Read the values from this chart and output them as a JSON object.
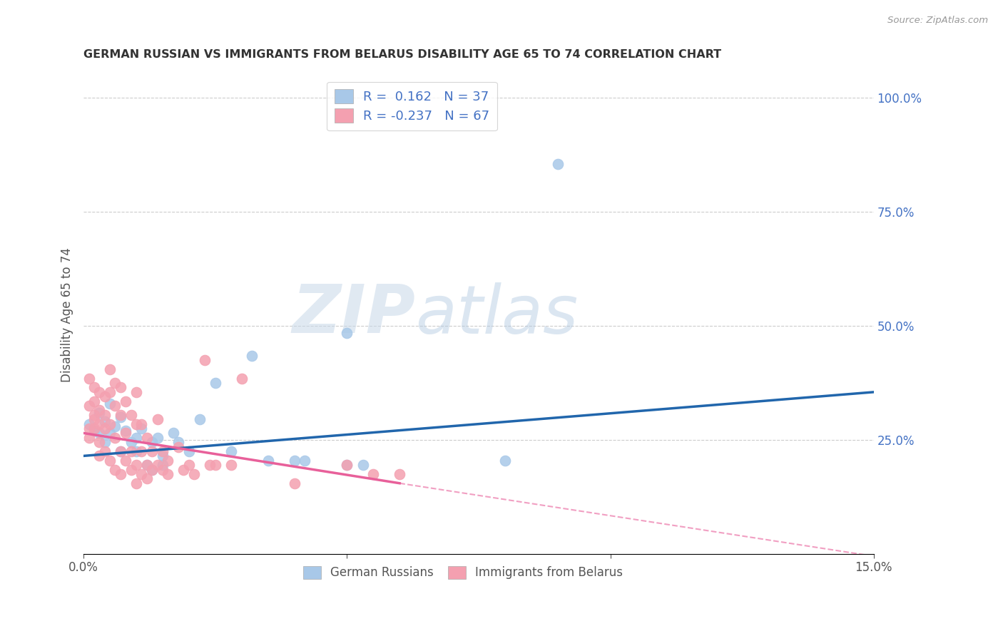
{
  "title": "GERMAN RUSSIAN VS IMMIGRANTS FROM BELARUS DISABILITY AGE 65 TO 74 CORRELATION CHART",
  "source": "Source: ZipAtlas.com",
  "ylabel": "Disability Age 65 to 74",
  "xlim": [
    0.0,
    0.15
  ],
  "ylim": [
    0.0,
    1.05
  ],
  "r_blue": 0.162,
  "n_blue": 37,
  "r_pink": -0.237,
  "n_pink": 67,
  "legend_label_blue": "German Russians",
  "legend_label_pink": "Immigrants from Belarus",
  "blue_color": "#a8c8e8",
  "pink_color": "#f4a0b0",
  "blue_line_color": "#2166ac",
  "pink_line_color": "#e8609a",
  "blue_scatter": [
    [
      0.001,
      0.285
    ],
    [
      0.002,
      0.27
    ],
    [
      0.003,
      0.31
    ],
    [
      0.003,
      0.265
    ],
    [
      0.004,
      0.29
    ],
    [
      0.004,
      0.245
    ],
    [
      0.005,
      0.33
    ],
    [
      0.005,
      0.265
    ],
    [
      0.006,
      0.28
    ],
    [
      0.007,
      0.3
    ],
    [
      0.007,
      0.225
    ],
    [
      0.008,
      0.27
    ],
    [
      0.009,
      0.245
    ],
    [
      0.01,
      0.255
    ],
    [
      0.01,
      0.225
    ],
    [
      0.011,
      0.275
    ],
    [
      0.012,
      0.195
    ],
    [
      0.013,
      0.185
    ],
    [
      0.013,
      0.245
    ],
    [
      0.014,
      0.255
    ],
    [
      0.015,
      0.215
    ],
    [
      0.015,
      0.195
    ],
    [
      0.017,
      0.265
    ],
    [
      0.018,
      0.245
    ],
    [
      0.02,
      0.225
    ],
    [
      0.022,
      0.295
    ],
    [
      0.025,
      0.375
    ],
    [
      0.028,
      0.225
    ],
    [
      0.032,
      0.435
    ],
    [
      0.035,
      0.205
    ],
    [
      0.04,
      0.205
    ],
    [
      0.042,
      0.205
    ],
    [
      0.05,
      0.195
    ],
    [
      0.05,
      0.485
    ],
    [
      0.053,
      0.195
    ],
    [
      0.08,
      0.205
    ],
    [
      0.09,
      0.855
    ]
  ],
  "pink_scatter": [
    [
      0.001,
      0.275
    ],
    [
      0.001,
      0.255
    ],
    [
      0.001,
      0.325
    ],
    [
      0.001,
      0.385
    ],
    [
      0.002,
      0.295
    ],
    [
      0.002,
      0.335
    ],
    [
      0.002,
      0.365
    ],
    [
      0.002,
      0.275
    ],
    [
      0.002,
      0.305
    ],
    [
      0.003,
      0.315
    ],
    [
      0.003,
      0.355
    ],
    [
      0.003,
      0.285
    ],
    [
      0.003,
      0.245
    ],
    [
      0.003,
      0.215
    ],
    [
      0.004,
      0.345
    ],
    [
      0.004,
      0.305
    ],
    [
      0.004,
      0.275
    ],
    [
      0.004,
      0.225
    ],
    [
      0.005,
      0.405
    ],
    [
      0.005,
      0.355
    ],
    [
      0.005,
      0.285
    ],
    [
      0.005,
      0.205
    ],
    [
      0.006,
      0.375
    ],
    [
      0.006,
      0.325
    ],
    [
      0.006,
      0.255
    ],
    [
      0.006,
      0.185
    ],
    [
      0.007,
      0.365
    ],
    [
      0.007,
      0.305
    ],
    [
      0.007,
      0.225
    ],
    [
      0.007,
      0.175
    ],
    [
      0.008,
      0.335
    ],
    [
      0.008,
      0.265
    ],
    [
      0.008,
      0.205
    ],
    [
      0.009,
      0.305
    ],
    [
      0.009,
      0.225
    ],
    [
      0.009,
      0.185
    ],
    [
      0.01,
      0.355
    ],
    [
      0.01,
      0.285
    ],
    [
      0.01,
      0.195
    ],
    [
      0.01,
      0.155
    ],
    [
      0.011,
      0.285
    ],
    [
      0.011,
      0.225
    ],
    [
      0.011,
      0.175
    ],
    [
      0.012,
      0.255
    ],
    [
      0.012,
      0.195
    ],
    [
      0.012,
      0.165
    ],
    [
      0.013,
      0.225
    ],
    [
      0.013,
      0.185
    ],
    [
      0.014,
      0.295
    ],
    [
      0.014,
      0.195
    ],
    [
      0.015,
      0.225
    ],
    [
      0.015,
      0.185
    ],
    [
      0.016,
      0.205
    ],
    [
      0.016,
      0.175
    ],
    [
      0.018,
      0.235
    ],
    [
      0.019,
      0.185
    ],
    [
      0.02,
      0.195
    ],
    [
      0.021,
      0.175
    ],
    [
      0.023,
      0.425
    ],
    [
      0.024,
      0.195
    ],
    [
      0.025,
      0.195
    ],
    [
      0.028,
      0.195
    ],
    [
      0.03,
      0.385
    ],
    [
      0.04,
      0.155
    ],
    [
      0.05,
      0.195
    ],
    [
      0.055,
      0.175
    ],
    [
      0.06,
      0.175
    ]
  ],
  "blue_line": [
    [
      0.0,
      0.215
    ],
    [
      0.15,
      0.355
    ]
  ],
  "pink_line_solid": [
    [
      0.0,
      0.265
    ],
    [
      0.06,
      0.155
    ]
  ],
  "pink_line_dashed": [
    [
      0.06,
      0.155
    ],
    [
      0.15,
      -0.005
    ]
  ],
  "watermark_zip": "ZIP",
  "watermark_atlas": "atlas",
  "background_color": "#ffffff",
  "grid_color": "#cccccc",
  "legend_text_color": "#4472c4",
  "right_axis_color": "#4472c4",
  "title_color": "#333333",
  "source_color": "#999999"
}
